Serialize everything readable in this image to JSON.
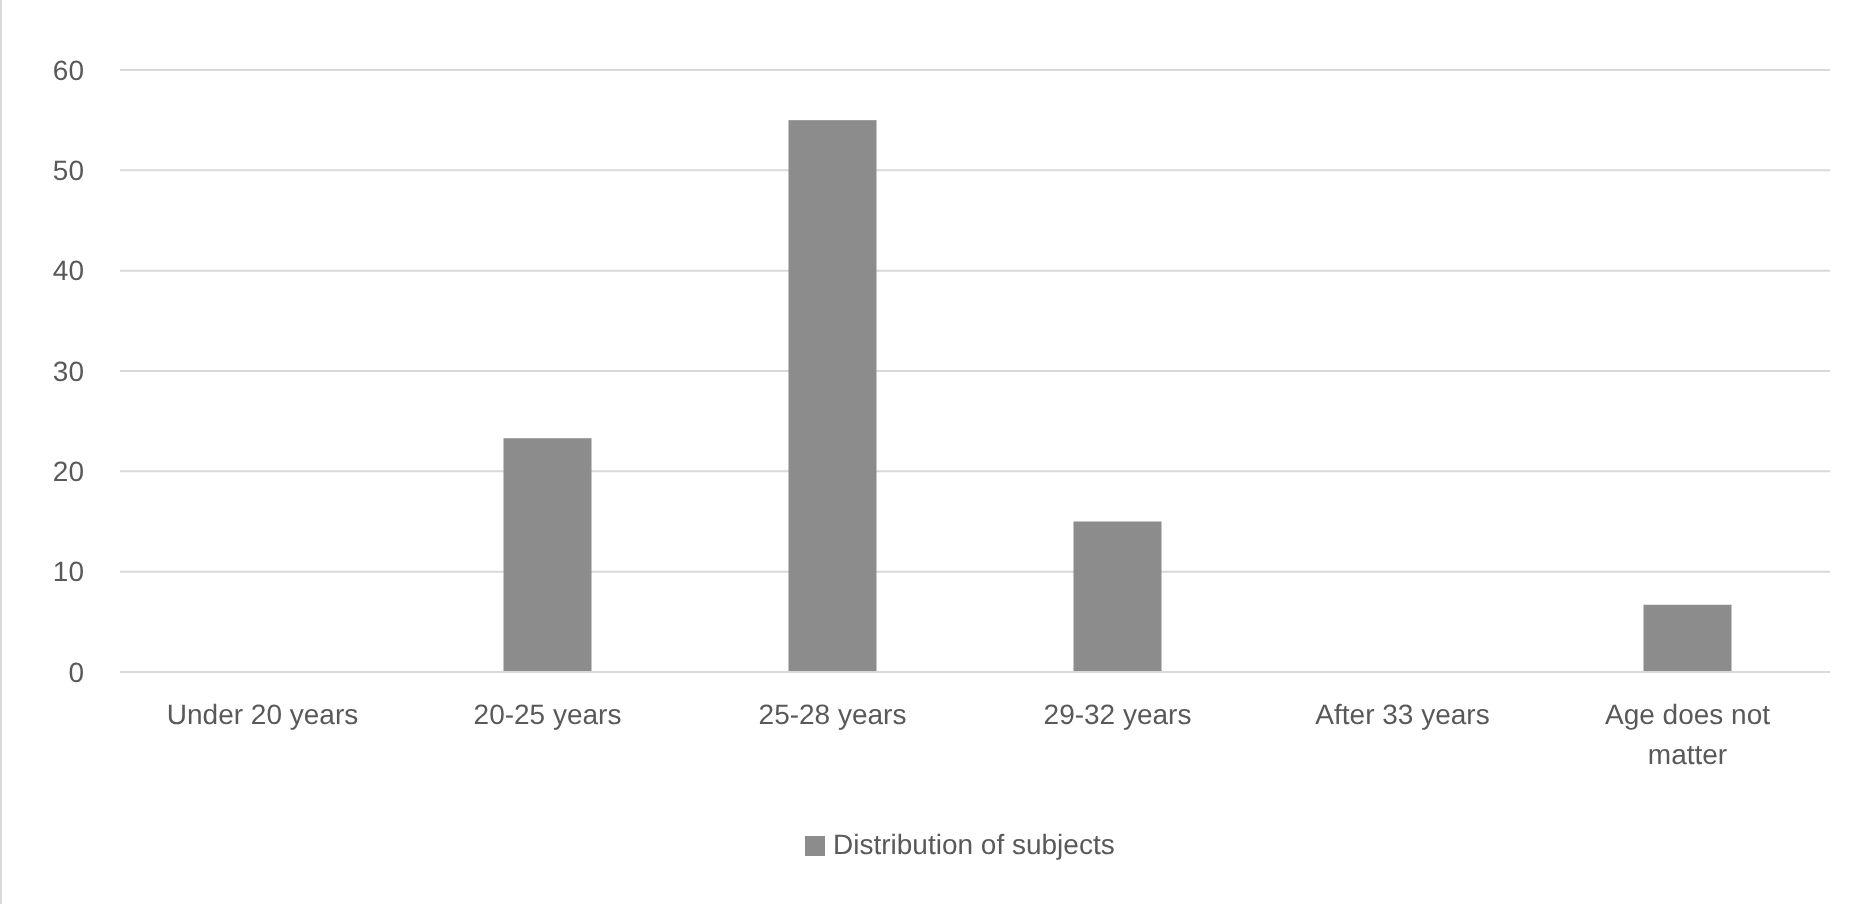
{
  "chart_data": {
    "type": "bar",
    "categories": [
      "Under 20 years",
      "20-25 years",
      "25-28 years",
      "29-32 years",
      "After 33 years",
      "Age does not matter"
    ],
    "series": [
      {
        "name": "Distribution of subjects",
        "color": "#8c8c8c",
        "values": [
          0,
          23.3,
          55,
          15,
          0,
          6.7
        ]
      }
    ],
    "ylim": [
      0,
      60
    ],
    "yticks": [
      0,
      10,
      20,
      30,
      40,
      50,
      60
    ],
    "grid": "y",
    "legend": "bottom"
  }
}
